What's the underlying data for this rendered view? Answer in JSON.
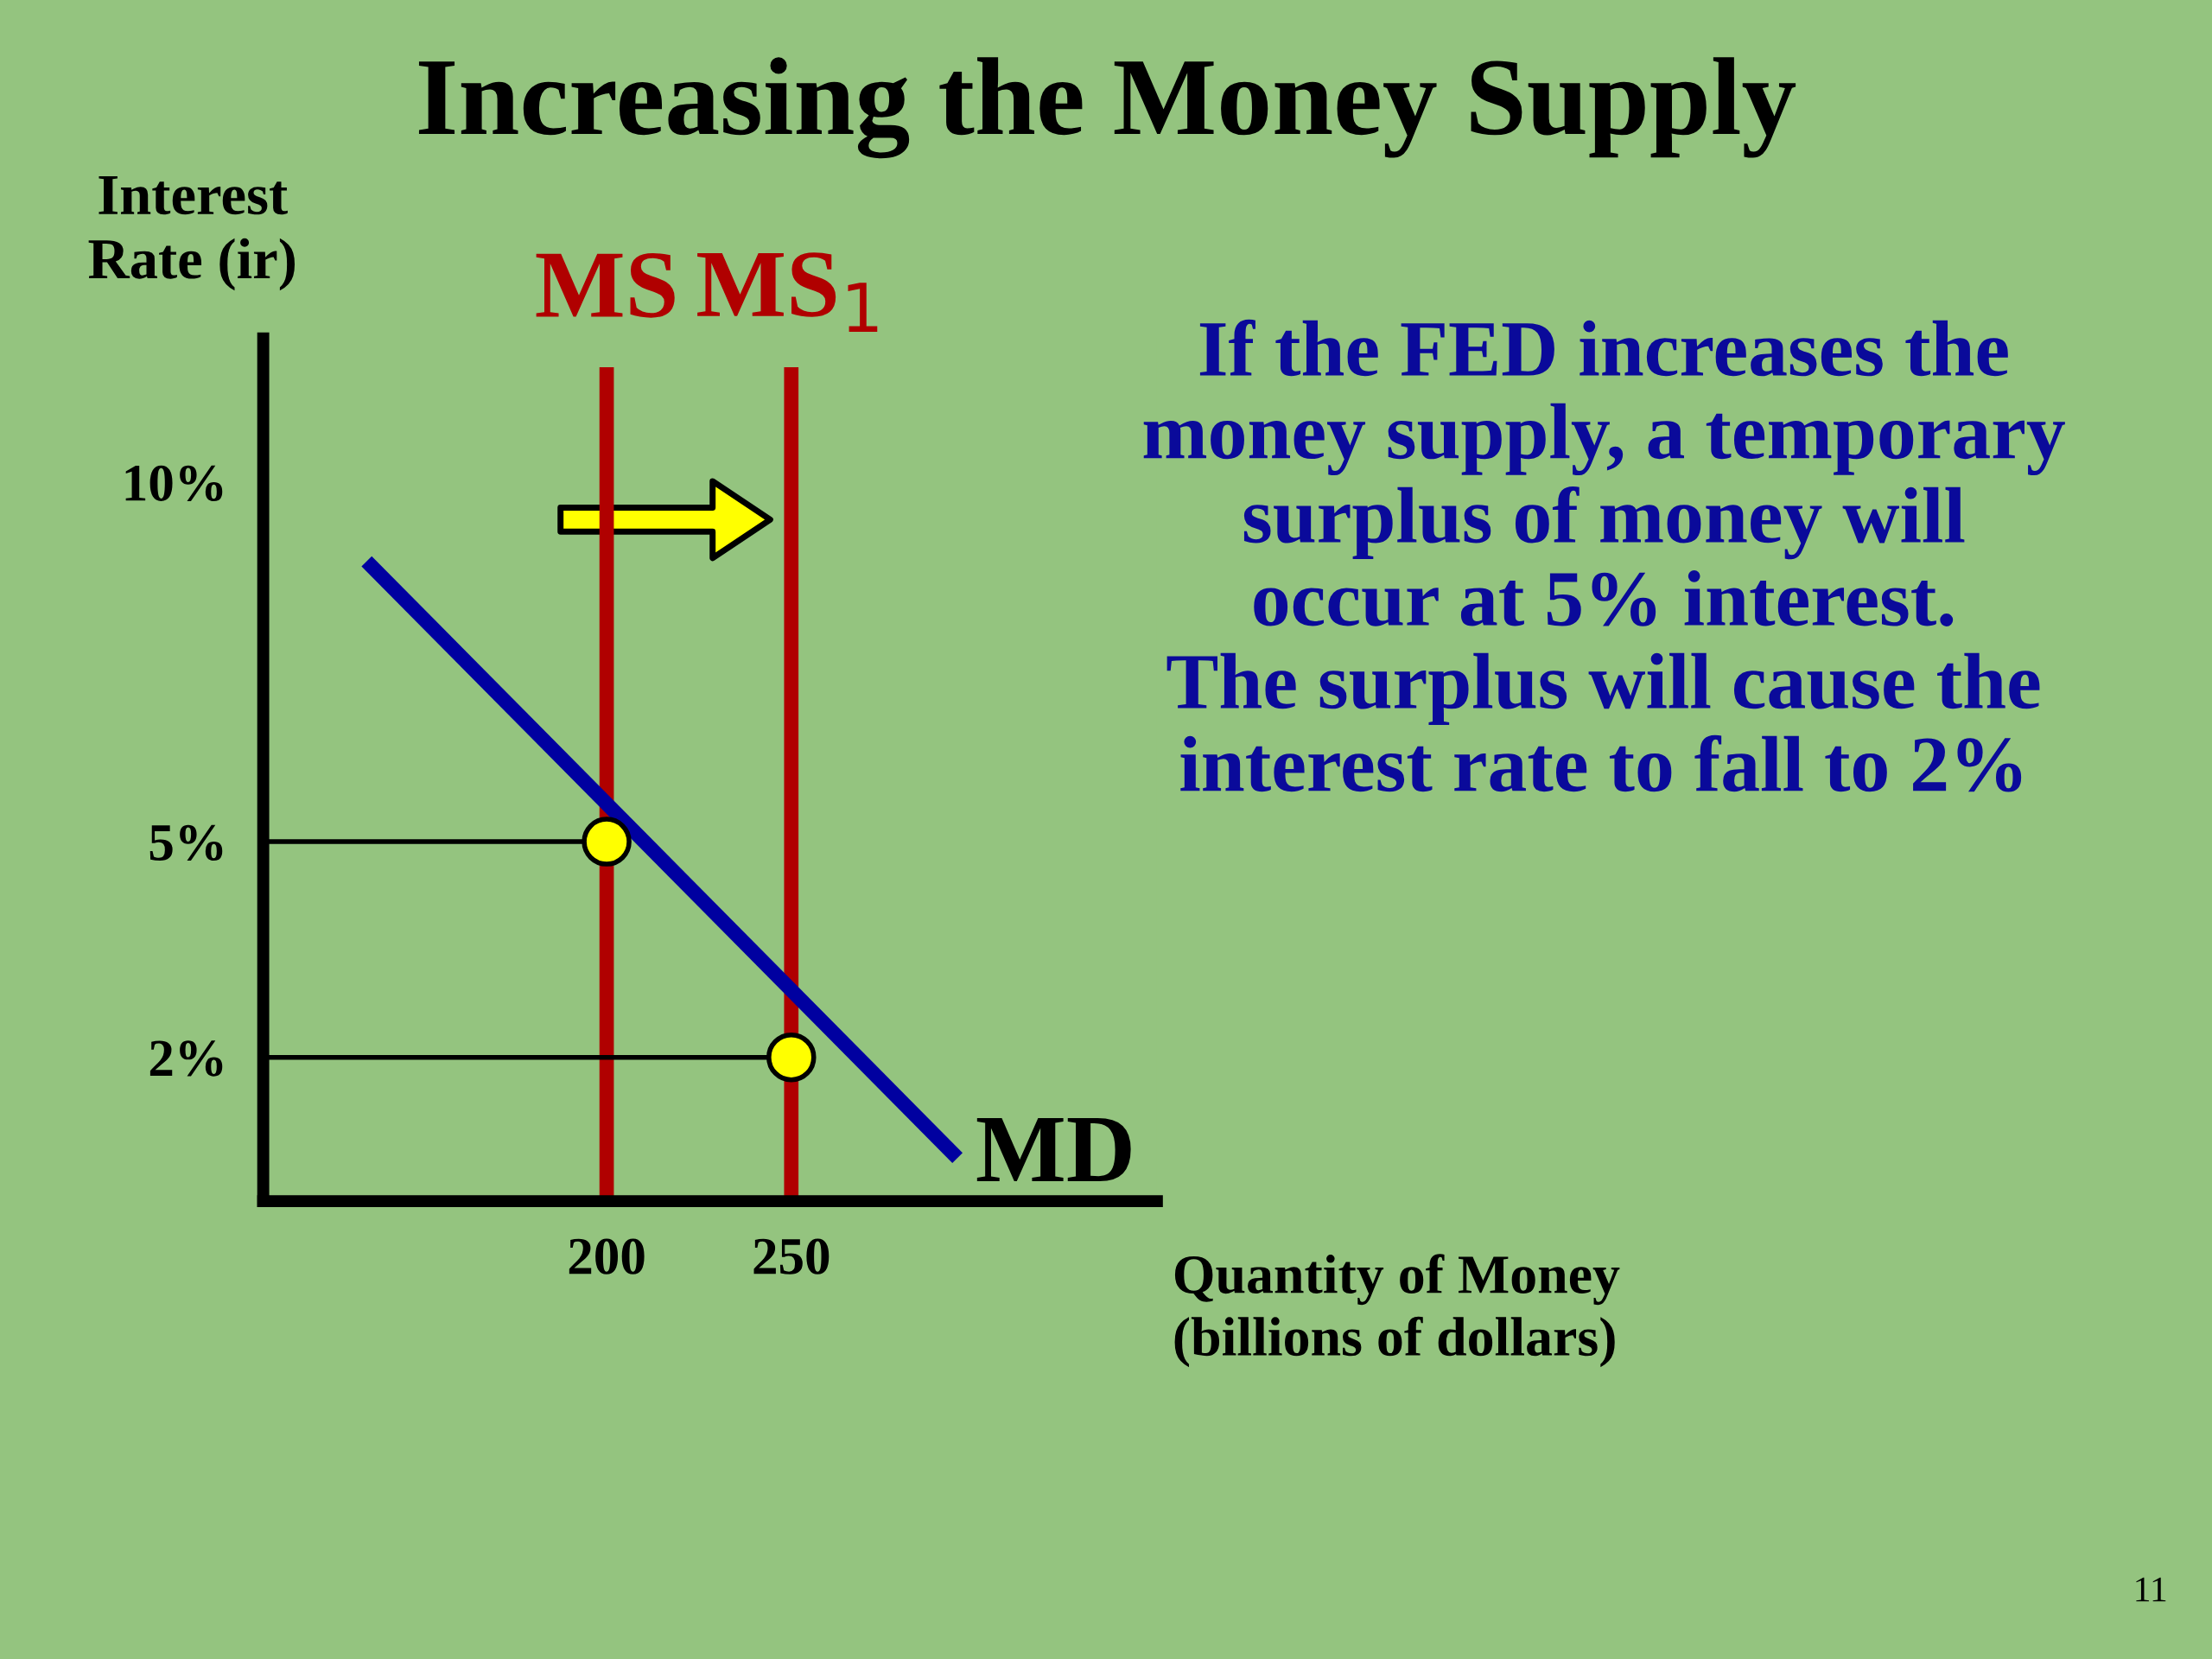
{
  "chart_data": {
    "type": "line",
    "title": "Increasing the Money Supply",
    "xlabel": "Quantity of Money\n(billions of dollars)",
    "ylabel": "Interest\nRate (ir)",
    "series": [
      {
        "name": "MS",
        "color": "#b00000",
        "x": [
          200,
          200
        ],
        "values": [
          0,
          11.6
        ]
      },
      {
        "name": "MS$_{1}$",
        "color": "#b00000",
        "x": [
          250,
          250
        ],
        "values": [
          0,
          11.6
        ]
      },
      {
        "name": "MD",
        "color": "#0000a0",
        "x": [
          135,
          295
        ],
        "values": [
          8.9,
          0.6
        ]
      },
      {
        "color": "#000000",
        "x": [
          107,
          195
        ],
        "values": [
          5,
          5
        ]
      },
      {
        "color": "#000000",
        "x": [
          107,
          245
        ],
        "values": [
          2,
          2
        ]
      },
      {
        "type": "scatter",
        "color": "#ffff00",
        "x": [
          200,
          250
        ],
        "values": [
          5,
          2
        ],
        "marker": "circle"
      }
    ],
    "xlim": [
      107,
      349
    ],
    "xticks": [
      200,
      250
    ],
    "ylim": [
      0,
      12
    ],
    "yticks": [
      {
        "value": 2,
        "label": "2%"
      },
      {
        "value": 5,
        "label": "5%"
      },
      {
        "value": 10,
        "label": "10%"
      }
    ],
    "grid": false,
    "legend": false,
    "ref_lines": [
      {
        "axis": "x",
        "value": 107,
        "color": "#000000"
      }
    ],
    "annotations": [
      "If the FED increases the\nmoney supply, a temporary\nsurplus of money will\noccur at 5% interest.\nThe surplus will cause the\ninterest rate to fall to 2%",
      "11"
    ]
  }
}
